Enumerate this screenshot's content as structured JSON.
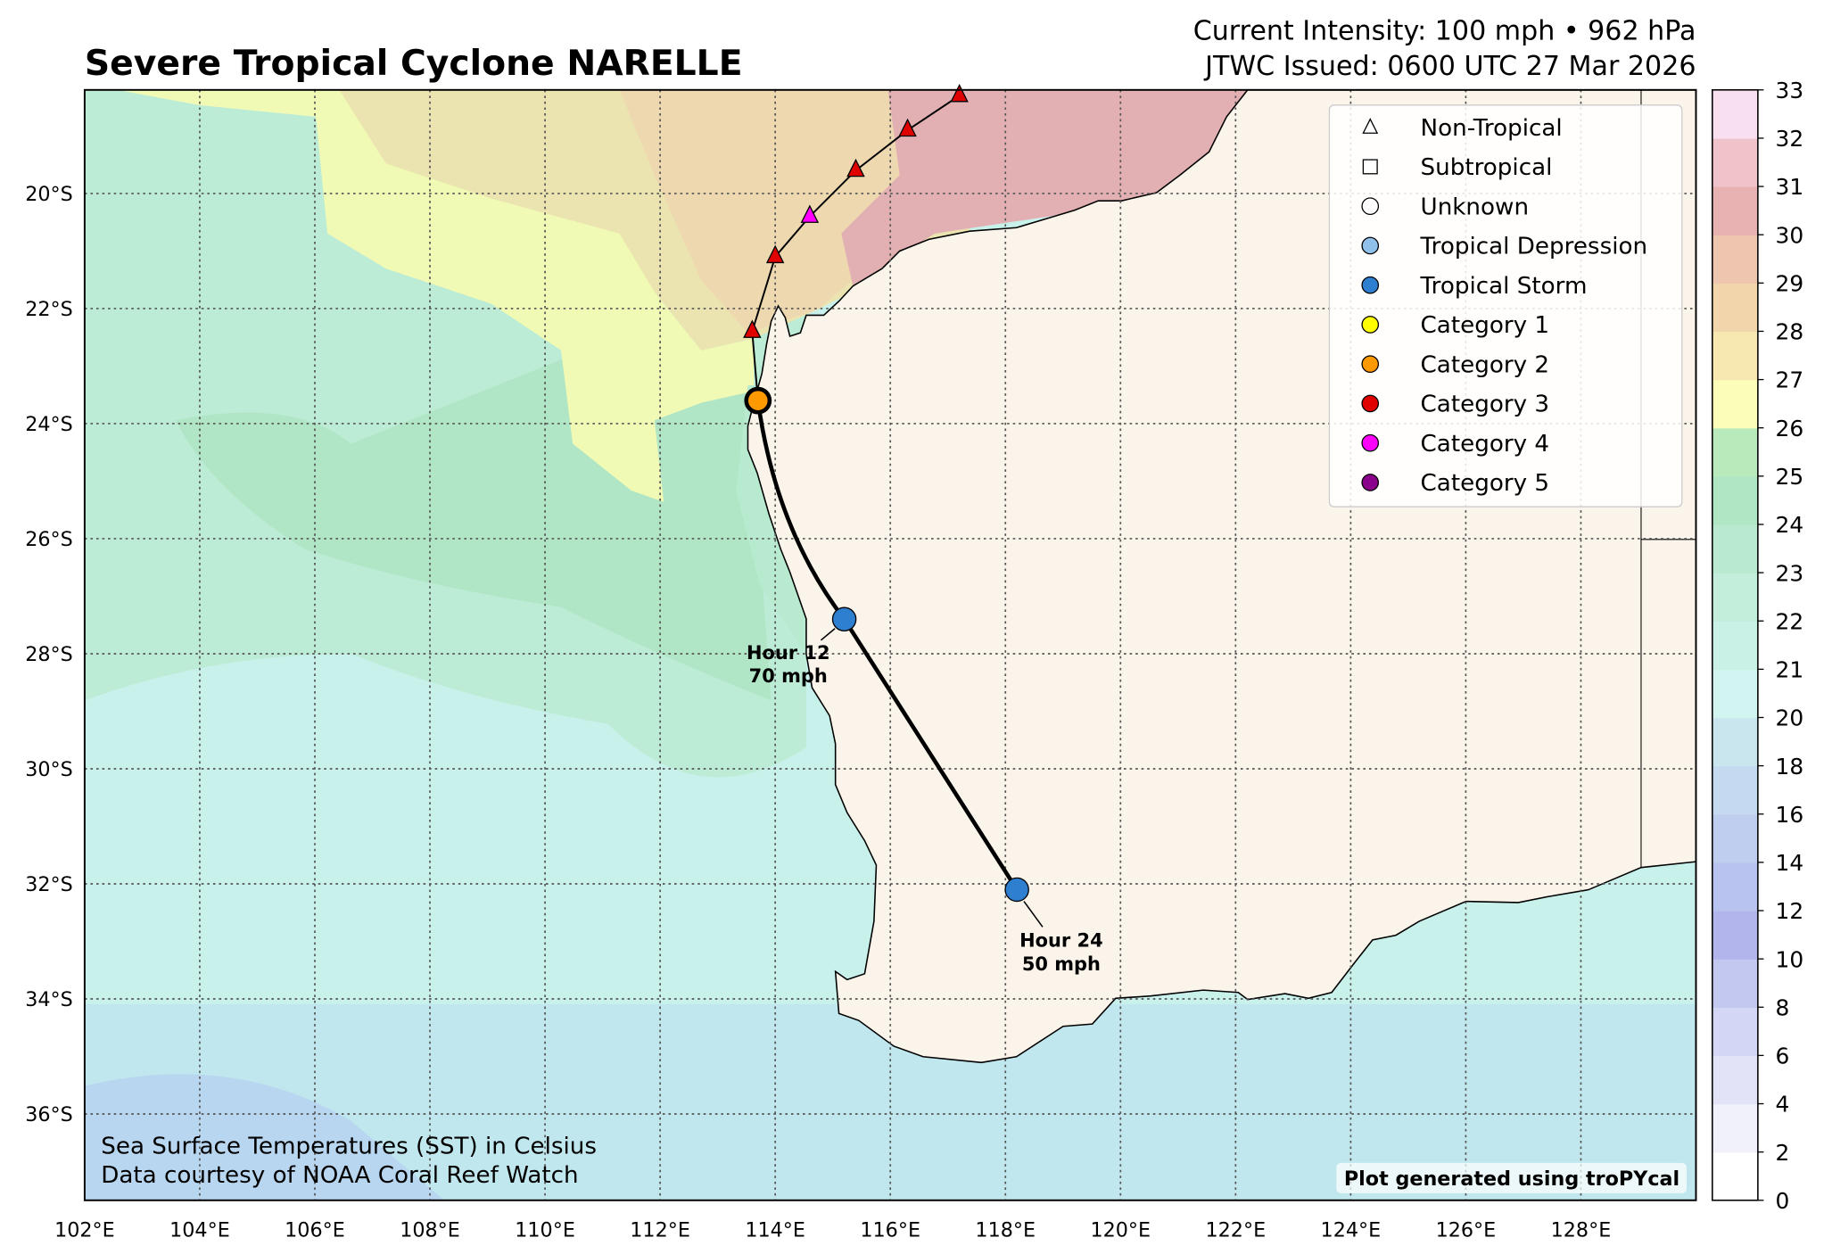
{
  "header": {
    "title": "Severe Tropical Cyclone NARELLE",
    "intensity": "Current Intensity: 100 mph • 962 hPa",
    "issued": "JTWC Issued: 0600 UTC 27 Mar 2026"
  },
  "map": {
    "lon_range": [
      102,
      130
    ],
    "lat_range": [
      -37.5,
      -18.2
    ],
    "lon_ticks": [
      102,
      104,
      106,
      108,
      110,
      112,
      114,
      116,
      118,
      120,
      122,
      124,
      126,
      128
    ],
    "lon_labels": [
      "102°E",
      "104°E",
      "106°E",
      "108°E",
      "110°E",
      "112°E",
      "114°E",
      "116°E",
      "118°E",
      "120°E",
      "122°E",
      "124°E",
      "126°E",
      "128°E"
    ],
    "lat_ticks": [
      -20,
      -22,
      -24,
      -26,
      -28,
      -30,
      -32,
      -34,
      -36
    ],
    "lat_labels": [
      "20°S",
      "22°S",
      "24°S",
      "26°S",
      "28°S",
      "30°S",
      "32°S",
      "34°S",
      "36°S"
    ],
    "past_track": [
      {
        "lon": 117.2,
        "lat": -18.3,
        "category": "Category 3"
      },
      {
        "lon": 116.3,
        "lat": -18.9,
        "category": "Category 3"
      },
      {
        "lon": 115.4,
        "lat": -19.6,
        "category": "Category 3"
      },
      {
        "lon": 114.6,
        "lat": -20.4,
        "category": "Category 4"
      },
      {
        "lon": 114.0,
        "lat": -21.1,
        "category": "Category 3"
      },
      {
        "lon": 113.6,
        "lat": -22.4,
        "category": "Category 3"
      }
    ],
    "current": {
      "lon": 113.7,
      "lat": -23.6,
      "category": "Category 2"
    },
    "forecast": [
      {
        "lon": 115.2,
        "lat": -27.4,
        "category": "Tropical Storm",
        "label_hour": "Hour 12",
        "label_wind": "70 mph"
      },
      {
        "lon": 118.2,
        "lat": -32.1,
        "category": "Tropical Storm",
        "label_hour": "Hour 24",
        "label_wind": "50 mph"
      }
    ],
    "category_colors": {
      "Tropical Depression": "#8fc1ea",
      "Tropical Storm": "#2f7fd0",
      "Category 1": "#ffff00",
      "Category 2": "#ff9900",
      "Category 3": "#e00000",
      "Category 4": "#ff00ff",
      "Category 5": "#8b008b"
    }
  },
  "legend": {
    "items": [
      {
        "label": "Non-Tropical",
        "shape": "triangle",
        "color": "#ffffff"
      },
      {
        "label": "Subtropical",
        "shape": "square",
        "color": "#ffffff"
      },
      {
        "label": "Unknown",
        "shape": "circle",
        "color": "#ffffff"
      },
      {
        "label": "Tropical Depression",
        "shape": "circle",
        "color": "#8fc1ea"
      },
      {
        "label": "Tropical Storm",
        "shape": "circle",
        "color": "#2f7fd0"
      },
      {
        "label": "Category 1",
        "shape": "circle",
        "color": "#ffff00"
      },
      {
        "label": "Category 2",
        "shape": "circle",
        "color": "#ff9900"
      },
      {
        "label": "Category 3",
        "shape": "circle",
        "color": "#e00000"
      },
      {
        "label": "Category 4",
        "shape": "circle",
        "color": "#ff00ff"
      },
      {
        "label": "Category 5",
        "shape": "circle",
        "color": "#8b008b"
      }
    ]
  },
  "colorbar": {
    "ticks": [
      "0",
      "2",
      "4",
      "6",
      "8",
      "10",
      "12",
      "14",
      "16",
      "18",
      "20",
      "21",
      "22",
      "23",
      "24",
      "25",
      "26",
      "27",
      "28",
      "29",
      "30",
      "31",
      "32",
      "33"
    ],
    "colors": [
      "#ffffff",
      "#f1f1fb",
      "#e3e3f8",
      "#d3d6f4",
      "#c3c8f1",
      "#b1b5ec",
      "#b9c3ef",
      "#bfcdef",
      "#c5d9f0",
      "#c9e6ef",
      "#d2f5f1",
      "#c9f1e6",
      "#c2eedb",
      "#b9ead0",
      "#b1e6c5",
      "#b9eabb",
      "#fbfdb9",
      "#f7e8b2",
      "#f3d5ab",
      "#eec5ae",
      "#e8b2b2",
      "#f0c2ca",
      "#f8e0f0"
    ]
  },
  "footer": {
    "sst_note": "Sea Surface Temperatures (SST) in Celsius",
    "credit": "Data courtesy of NOAA Coral Reef Watch",
    "generated": "Plot generated using troPYcal"
  }
}
